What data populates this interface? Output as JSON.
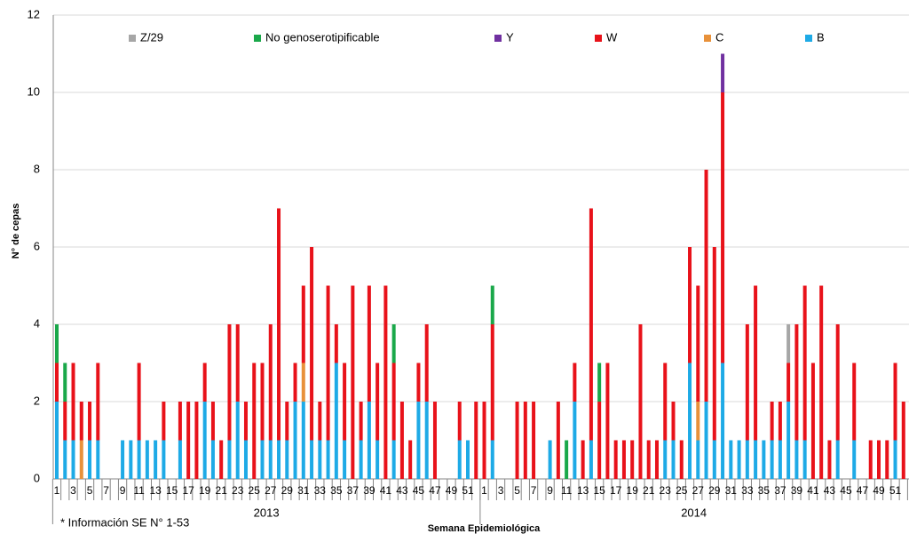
{
  "chart_data": {
    "type": "stacked_bar",
    "ylabel": "N° de cepas",
    "xlabel": "Semana Epidemiológica",
    "note": "* Información SE N° 1-53",
    "years": [
      "2013",
      "2014"
    ],
    "categories": [
      "1",
      null,
      "3",
      null,
      "5",
      null,
      "7",
      null,
      "9",
      null,
      "11",
      null,
      "13",
      null,
      "15",
      null,
      "17",
      null,
      "19",
      null,
      "21",
      null,
      "23",
      null,
      "25",
      null,
      "27",
      null,
      "29",
      null,
      "31",
      null,
      "33",
      null,
      "35",
      null,
      "37",
      null,
      "39",
      null,
      "41",
      null,
      "43",
      null,
      "45",
      null,
      "47",
      null,
      "49",
      null,
      "51",
      null,
      "1",
      null,
      "3",
      null,
      "5",
      null,
      "7",
      null,
      "9",
      null,
      "11",
      null,
      "13",
      null,
      "15",
      null,
      "17",
      null,
      "19",
      null,
      "21",
      null,
      "23",
      null,
      "25",
      null,
      "27",
      null,
      "29",
      null,
      "31",
      null,
      "33",
      null,
      "35",
      null,
      "37",
      null,
      "39",
      null,
      "41",
      null,
      "43",
      null,
      "45",
      null,
      "47",
      null,
      "49",
      null,
      "51",
      null
    ],
    "ylim": [
      0,
      12
    ],
    "yticks": [
      0,
      2,
      4,
      6,
      8,
      10,
      12
    ],
    "grid": true,
    "series": [
      {
        "name": "B",
        "color": "#1eaae6",
        "values": [
          2,
          1,
          1,
          0,
          1,
          1,
          0,
          0,
          1,
          1,
          1,
          1,
          1,
          1,
          0,
          1,
          0,
          0,
          2,
          1,
          0,
          1,
          2,
          1,
          0,
          1,
          1,
          1,
          1,
          2,
          2,
          1,
          1,
          1,
          3,
          1,
          0,
          1,
          2,
          1,
          0,
          1,
          0,
          0,
          2,
          2,
          0,
          0,
          0,
          1,
          1,
          0,
          0,
          1,
          0,
          0,
          0,
          0,
          0,
          0,
          1,
          0,
          0,
          2,
          0,
          1,
          0,
          0,
          0,
          0,
          0,
          0,
          0,
          0,
          1,
          1,
          0,
          3,
          1,
          2,
          1,
          3,
          1,
          1,
          1,
          1,
          1,
          1,
          1,
          2,
          1,
          1,
          0,
          0,
          0,
          1,
          0,
          1,
          0,
          0,
          0,
          0,
          1,
          0
        ]
      },
      {
        "name": "C",
        "color": "#e8913a",
        "values": [
          0,
          0,
          0,
          1,
          0,
          0,
          0,
          0,
          0,
          0,
          0,
          0,
          0,
          0,
          0,
          0,
          0,
          0,
          0,
          0,
          0,
          0,
          0,
          0,
          0,
          0,
          0,
          0,
          0,
          0,
          1,
          0,
          0,
          0,
          0,
          0,
          0,
          0,
          0,
          0,
          0,
          0,
          0,
          0,
          0,
          0,
          0,
          0,
          0,
          0,
          0,
          0,
          0,
          0,
          0,
          0,
          0,
          0,
          0,
          0,
          0,
          0,
          0,
          0,
          0,
          0,
          0,
          0,
          0,
          0,
          0,
          0,
          0,
          0,
          0,
          0,
          0,
          0,
          1,
          0,
          0,
          0,
          0,
          0,
          0,
          0,
          0,
          0,
          0,
          0,
          0,
          0,
          0,
          0,
          0,
          0,
          0,
          0,
          0,
          0,
          0,
          0,
          0,
          0
        ]
      },
      {
        "name": "W",
        "color": "#e8121a",
        "values": [
          1,
          1,
          2,
          1,
          1,
          2,
          0,
          0,
          0,
          0,
          2,
          0,
          0,
          1,
          0,
          1,
          2,
          2,
          1,
          1,
          1,
          3,
          2,
          1,
          3,
          2,
          3,
          6,
          1,
          1,
          2,
          5,
          1,
          4,
          1,
          2,
          5,
          1,
          3,
          2,
          5,
          2,
          2,
          1,
          1,
          2,
          2,
          0,
          0,
          1,
          0,
          2,
          2,
          3,
          0,
          0,
          2,
          2,
          2,
          0,
          0,
          2,
          0,
          1,
          1,
          6,
          2,
          3,
          1,
          1,
          1,
          4,
          1,
          1,
          2,
          1,
          1,
          3,
          3,
          6,
          5,
          7,
          0,
          0,
          3,
          4,
          0,
          1,
          1,
          1,
          3,
          4,
          3,
          5,
          1,
          3,
          0,
          2,
          0,
          1,
          1,
          1,
          2,
          2
        ]
      },
      {
        "name": "Y",
        "color": "#7030a0",
        "values": [
          0,
          0,
          0,
          0,
          0,
          0,
          0,
          0,
          0,
          0,
          0,
          0,
          0,
          0,
          0,
          0,
          0,
          0,
          0,
          0,
          0,
          0,
          0,
          0,
          0,
          0,
          0,
          0,
          0,
          0,
          0,
          0,
          0,
          0,
          0,
          0,
          0,
          0,
          0,
          0,
          0,
          0,
          0,
          0,
          0,
          0,
          0,
          0,
          0,
          0,
          0,
          0,
          0,
          0,
          0,
          0,
          0,
          0,
          0,
          0,
          0,
          0,
          0,
          0,
          0,
          0,
          0,
          0,
          0,
          0,
          0,
          0,
          0,
          0,
          0,
          0,
          0,
          0,
          0,
          0,
          0,
          1,
          0,
          0,
          0,
          0,
          0,
          0,
          0,
          0,
          0,
          0,
          0,
          0,
          0,
          0,
          0,
          0,
          0,
          0,
          0,
          0,
          0,
          0
        ]
      },
      {
        "name": "No genoserotipificable",
        "color": "#1aa84a",
        "values": [
          1,
          1,
          0,
          0,
          0,
          0,
          0,
          0,
          0,
          0,
          0,
          0,
          0,
          0,
          0,
          0,
          0,
          0,
          0,
          0,
          0,
          0,
          0,
          0,
          0,
          0,
          0,
          0,
          0,
          0,
          0,
          0,
          0,
          0,
          0,
          0,
          0,
          0,
          0,
          0,
          0,
          1,
          0,
          0,
          0,
          0,
          0,
          0,
          0,
          0,
          0,
          0,
          0,
          1,
          0,
          0,
          0,
          0,
          0,
          0,
          0,
          0,
          1,
          0,
          0,
          0,
          1,
          0,
          0,
          0,
          0,
          0,
          0,
          0,
          0,
          0,
          0,
          0,
          0,
          0,
          0,
          0,
          0,
          0,
          0,
          0,
          0,
          0,
          0,
          0,
          0,
          0,
          0,
          0,
          0,
          0,
          0,
          0,
          0,
          0,
          0,
          0,
          0,
          0
        ]
      },
      {
        "name": "Z/29",
        "color": "#a6a6a6",
        "values": [
          0,
          0,
          0,
          0,
          0,
          0,
          0,
          0,
          0,
          0,
          0,
          0,
          0,
          0,
          0,
          0,
          0,
          0,
          0,
          0,
          0,
          0,
          0,
          0,
          0,
          0,
          0,
          0,
          0,
          0,
          0,
          0,
          0,
          0,
          0,
          0,
          0,
          0,
          0,
          0,
          0,
          0,
          0,
          0,
          0,
          0,
          0,
          0,
          0,
          0,
          0,
          0,
          0,
          0,
          0,
          0,
          0,
          0,
          0,
          0,
          0,
          0,
          0,
          0,
          0,
          0,
          0,
          0,
          0,
          0,
          0,
          0,
          0,
          0,
          0,
          0,
          0,
          0,
          0,
          0,
          0,
          0,
          0,
          0,
          0,
          0,
          0,
          0,
          0,
          1,
          0,
          0,
          0,
          0,
          0,
          0,
          0,
          0,
          0,
          0,
          0,
          0,
          0,
          0
        ]
      }
    ]
  }
}
